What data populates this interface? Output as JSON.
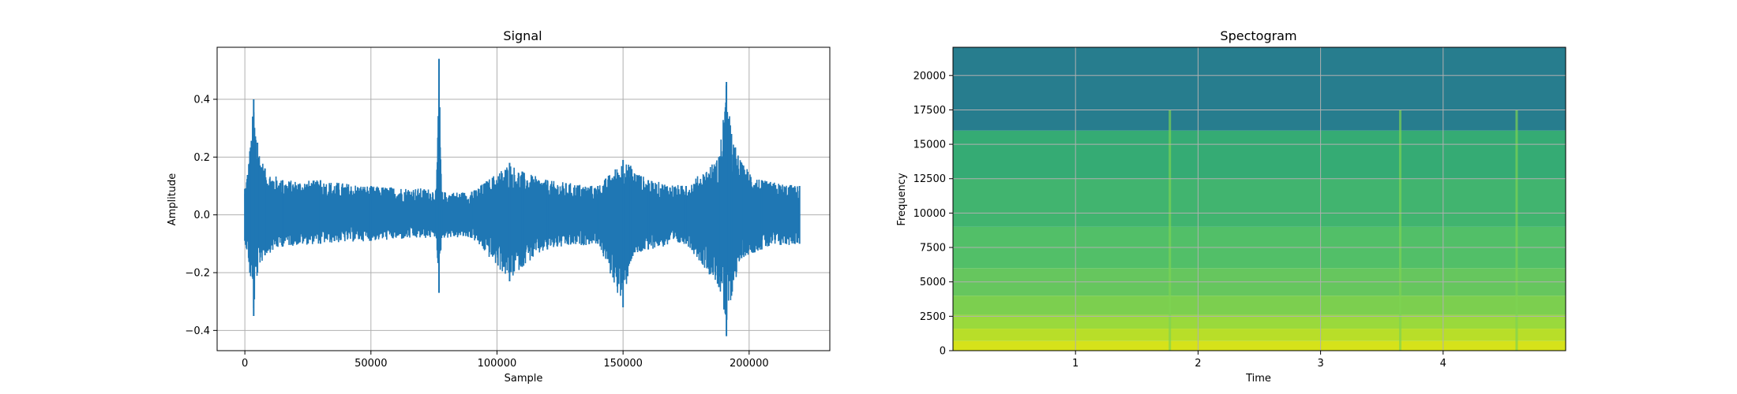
{
  "chart_data": [
    {
      "type": "line",
      "title": "Signal",
      "xlabel": "Sample",
      "ylabel": "Amplitude",
      "xlim": [
        -11000,
        232000
      ],
      "ylim": [
        -0.47,
        0.58
      ],
      "grid": true,
      "color": "#1f77b4",
      "x_ticks": [
        {
          "value": 0,
          "label": "0"
        },
        {
          "value": 50000,
          "label": "50000"
        },
        {
          "value": 100000,
          "label": "100000"
        },
        {
          "value": 150000,
          "label": "150000"
        },
        {
          "value": 200000,
          "label": "200000"
        }
      ],
      "y_ticks": [
        {
          "value": -0.4,
          "label": "−0.4"
        },
        {
          "value": -0.2,
          "label": "−0.2"
        },
        {
          "value": 0.0,
          "label": "0.0"
        },
        {
          "value": 0.2,
          "label": "0.2"
        },
        {
          "value": 0.4,
          "label": "0.4"
        }
      ],
      "envelope": {
        "x": [
          0,
          2000,
          3500,
          5000,
          8000,
          15000,
          30000,
          50000,
          76000,
          77000,
          78000,
          90000,
          105000,
          110000,
          120000,
          140000,
          150000,
          153000,
          160000,
          175000,
          188000,
          191000,
          193000,
          197000,
          205000,
          220000
        ],
        "upper": [
          0.09,
          0.22,
          0.4,
          0.25,
          0.16,
          0.12,
          0.12,
          0.1,
          0.09,
          0.54,
          0.08,
          0.08,
          0.18,
          0.15,
          0.12,
          0.1,
          0.19,
          0.17,
          0.12,
          0.1,
          0.2,
          0.46,
          0.28,
          0.18,
          0.12,
          0.1
        ],
        "lower": [
          -0.09,
          -0.2,
          -0.35,
          -0.2,
          -0.14,
          -0.11,
          -0.1,
          -0.09,
          -0.08,
          -0.27,
          -0.08,
          -0.08,
          -0.23,
          -0.18,
          -0.12,
          -0.1,
          -0.32,
          -0.16,
          -0.12,
          -0.1,
          -0.25,
          -0.42,
          -0.28,
          -0.15,
          -0.12,
          -0.1
        ]
      }
    },
    {
      "type": "heatmap",
      "title": "Spectogram",
      "xlabel": "Time",
      "ylabel": "Frequency",
      "xlim": [
        0,
        5.0
      ],
      "ylim": [
        0,
        22050
      ],
      "grid": true,
      "colormap": "viridis",
      "x_ticks": [
        {
          "value": 1,
          "label": "1"
        },
        {
          "value": 2,
          "label": "2"
        },
        {
          "value": 3,
          "label": "3"
        },
        {
          "value": 4,
          "label": "4"
        }
      ],
      "y_ticks": [
        {
          "value": 0,
          "label": "0"
        },
        {
          "value": 2500,
          "label": "2500"
        },
        {
          "value": 5000,
          "label": "5000"
        },
        {
          "value": 7500,
          "label": "7500"
        },
        {
          "value": 10000,
          "label": "10000"
        },
        {
          "value": 12500,
          "label": "12500"
        },
        {
          "value": 15000,
          "label": "15000"
        },
        {
          "value": 17500,
          "label": "17500"
        },
        {
          "value": 20000,
          "label": "20000"
        }
      ],
      "frequency_bands": [
        {
          "from": 0,
          "to": 700,
          "color": "#d6e21a"
        },
        {
          "from": 700,
          "to": 1600,
          "color": "#b8de29"
        },
        {
          "from": 1600,
          "to": 2600,
          "color": "#9ad93c"
        },
        {
          "from": 2600,
          "to": 4000,
          "color": "#7ccf4f"
        },
        {
          "from": 4000,
          "to": 6000,
          "color": "#66c65e"
        },
        {
          "from": 6000,
          "to": 9000,
          "color": "#52bf68"
        },
        {
          "from": 9000,
          "to": 12500,
          "color": "#41b46f"
        },
        {
          "from": 12500,
          "to": 16000,
          "color": "#35ab74"
        },
        {
          "from": 16000,
          "to": 22050,
          "color": "#277d8e"
        }
      ],
      "transient_times": [
        1.77,
        3.65,
        4.6
      ],
      "transient_color": "#7dd352"
    }
  ]
}
